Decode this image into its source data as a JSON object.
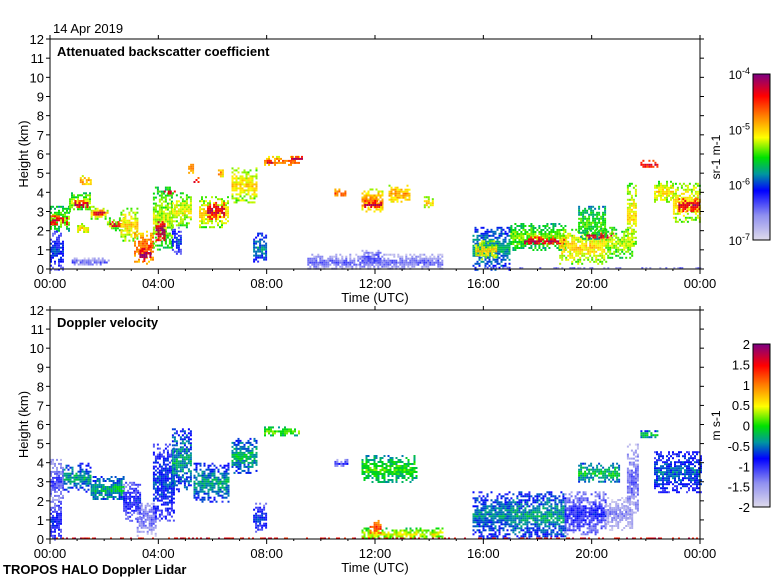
{
  "chart_data": [
    {
      "type": "heatmap",
      "id": "bsc",
      "date": "14 Apr 2019",
      "title": "Attenuated backscatter coefficient",
      "xlabel": "Time (UTC)",
      "ylabel": "Height (km)",
      "xlim": [
        0,
        24
      ],
      "ylim": [
        0,
        12
      ],
      "xticks": [
        "00:00",
        "04:00",
        "08:00",
        "12:00",
        "16:00",
        "20:00",
        "00:00"
      ],
      "yticks": [
        "0",
        "1",
        "2",
        "3",
        "4",
        "5",
        "6",
        "7",
        "8",
        "9",
        "10",
        "11",
        "12"
      ],
      "colorbar": {
        "label": "sr-1 m-1",
        "scale": "log10",
        "range": [
          -7,
          -4
        ],
        "ticks": [
          {
            "base": "10",
            "exp": "-4"
          },
          {
            "base": "10",
            "exp": "-5"
          },
          {
            "base": "10",
            "exp": "-6"
          },
          {
            "base": "10",
            "exp": "-7"
          }
        ]
      },
      "features_note": "[t_start_h, t_end_h, base_km, top_km, log10 value]",
      "features": [
        [
          0,
          0.7,
          2.0,
          3.3,
          -5.3
        ],
        [
          0,
          0.6,
          2.3,
          2.8,
          -4.2
        ],
        [
          0,
          0.5,
          0,
          2,
          -6.0
        ],
        [
          0.7,
          1.5,
          3.0,
          4.0,
          -5.2
        ],
        [
          0.9,
          1.4,
          3.2,
          3.6,
          -4.2
        ],
        [
          1.1,
          1.5,
          4.4,
          4.9,
          -4.8
        ],
        [
          1.5,
          2.1,
          2.6,
          3.3,
          -5.0
        ],
        [
          1.6,
          2.0,
          2.8,
          3.1,
          -4.2
        ],
        [
          1.0,
          1.4,
          1.9,
          2.4,
          -5
        ],
        [
          2.1,
          2.7,
          2.0,
          2.7,
          -5.2
        ],
        [
          2.2,
          2.6,
          2.2,
          2.5,
          -4.2
        ],
        [
          2.6,
          3.2,
          1.5,
          3.2,
          -5.0
        ],
        [
          3.1,
          3.8,
          0.3,
          2.0,
          -4.6
        ],
        [
          3.3,
          3.7,
          0.4,
          1.2,
          -4.1
        ],
        [
          3.8,
          4.5,
          1.0,
          4.3,
          -5.2
        ],
        [
          3.9,
          4.2,
          1.5,
          2.6,
          -4.1
        ],
        [
          4.2,
          4.6,
          3.9,
          4.2,
          -4.2
        ],
        [
          4.5,
          5.2,
          2.2,
          4.0,
          -5.1
        ],
        [
          4.5,
          4.8,
          0.8,
          2.2,
          -6
        ],
        [
          5.1,
          5.3,
          5.0,
          5.7,
          -4.7
        ],
        [
          5.3,
          5.5,
          4.5,
          4.8,
          -4.2
        ],
        [
          5.5,
          6.6,
          2.2,
          3.8,
          -5.0
        ],
        [
          5.8,
          6.4,
          2.6,
          3.5,
          -4.2
        ],
        [
          6.2,
          6.4,
          4.8,
          5.3,
          -4.8
        ],
        [
          6.7,
          7.6,
          3.5,
          5.3,
          -5
        ],
        [
          7.5,
          8.0,
          0.4,
          1.9,
          -5.8
        ],
        [
          7.9,
          9.2,
          5.4,
          5.9,
          -4.7
        ],
        [
          8.0,
          8.2,
          5.5,
          5.7,
          -4.2
        ],
        [
          8.9,
          9.3,
          5.7,
          5.9,
          -4.2
        ],
        [
          0.8,
          2.2,
          0.2,
          0.6,
          -6.4
        ],
        [
          9.5,
          14.5,
          0,
          0.8,
          -6.4
        ],
        [
          11.5,
          12.2,
          0.2,
          1.0,
          -6.3
        ],
        [
          10.5,
          11.0,
          3.8,
          4.2,
          -4.6
        ],
        [
          11.5,
          12.3,
          3.0,
          4.2,
          -4.8
        ],
        [
          11.6,
          12.2,
          3.2,
          3.6,
          -4.2
        ],
        [
          12.5,
          13.3,
          3.5,
          4.4,
          -4.8
        ],
        [
          13.8,
          14.1,
          3.2,
          3.8,
          -5
        ],
        [
          15.6,
          17.0,
          0,
          2.2,
          -5.7
        ],
        [
          15.7,
          16.5,
          0.5,
          1.5,
          -5.0
        ],
        [
          17.0,
          19.0,
          1.0,
          2.4,
          -5.3
        ],
        [
          17.5,
          19.0,
          1.3,
          1.7,
          -4.2
        ],
        [
          18.8,
          20.5,
          0.3,
          2.1,
          -5.0
        ],
        [
          19.5,
          20.5,
          1.6,
          3.3,
          -5.4
        ],
        [
          19.8,
          20.8,
          1.6,
          1.9,
          -4.2
        ],
        [
          20.5,
          21.5,
          0.6,
          2.2,
          -5.2
        ],
        [
          21.3,
          21.6,
          1.2,
          4.5,
          -5
        ],
        [
          21.8,
          22.4,
          5.3,
          5.7,
          -4.3
        ],
        [
          22.3,
          23.0,
          3.5,
          4.6,
          -5.0
        ],
        [
          23.0,
          24,
          2.5,
          4.5,
          -5.0
        ],
        [
          23.2,
          24,
          3.0,
          3.7,
          -4.2
        ],
        [
          16,
          24,
          0,
          0.1,
          -6.2
        ]
      ]
    },
    {
      "type": "heatmap",
      "id": "vel",
      "title": "Doppler velocity",
      "xlabel": "Time (UTC)",
      "ylabel": "Height (km)",
      "xlim": [
        0,
        24
      ],
      "ylim": [
        0,
        12
      ],
      "xticks": [
        "00:00",
        "04:00",
        "08:00",
        "12:00",
        "16:00",
        "20:00",
        "00:00"
      ],
      "yticks": [
        "0",
        "1",
        "2",
        "3",
        "4",
        "5",
        "6",
        "7",
        "8",
        "9",
        "10",
        "11",
        "12"
      ],
      "colorbar": {
        "label": "m s-1",
        "scale": "linear",
        "range": [
          -2,
          2
        ],
        "ticks": [
          "2",
          "1.5",
          "1",
          "0.5",
          "0",
          "-0.5",
          "-1",
          "-1.5",
          "-2"
        ]
      },
      "features_note": "[t_start_h, t_end_h, base_km, top_km, velocity m/s]",
      "features": [
        [
          0,
          0.5,
          2,
          4.2,
          -1.1
        ],
        [
          0,
          0.4,
          0,
          2,
          -0.8
        ],
        [
          0.5,
          1.5,
          2.5,
          4,
          -0.3
        ],
        [
          1.5,
          2.7,
          2,
          3.3,
          -0.2
        ],
        [
          2.7,
          3.3,
          1.0,
          3,
          -0.8
        ],
        [
          3.2,
          3.9,
          0.2,
          2.0,
          -1.2
        ],
        [
          3.8,
          4.6,
          1,
          5,
          -0.6
        ],
        [
          4.5,
          5.2,
          2.5,
          5.8,
          -0.3
        ],
        [
          5.3,
          6.6,
          2,
          4,
          -0.3
        ],
        [
          6.7,
          7.6,
          3.5,
          5.3,
          -0.2
        ],
        [
          7.5,
          8,
          0.3,
          1.9,
          -0.7
        ],
        [
          7.9,
          9.2,
          5.4,
          5.9,
          0.2
        ],
        [
          10.5,
          11,
          3.8,
          4.2,
          -1
        ],
        [
          11.5,
          13.5,
          3,
          4.4,
          0.1
        ],
        [
          11.5,
          14.5,
          0,
          0.6,
          0.5
        ],
        [
          11.8,
          12.2,
          0.3,
          1.0,
          1.3
        ],
        [
          15.6,
          17,
          0,
          2.5,
          -0.4
        ],
        [
          17,
          19,
          0,
          2.5,
          -0.3
        ],
        [
          19,
          20.5,
          0.2,
          2.5,
          -0.9
        ],
        [
          19.5,
          21,
          3,
          4,
          -0.1
        ],
        [
          20.5,
          21.5,
          0.5,
          2.2,
          -1.4
        ],
        [
          21.3,
          21.7,
          1.0,
          5,
          -1.2
        ],
        [
          21.8,
          22.4,
          5.3,
          5.7,
          -0.1
        ],
        [
          22.3,
          24,
          2.5,
          4.6,
          -0.5
        ],
        [
          0,
          24,
          0,
          0.08,
          2
        ]
      ]
    }
  ],
  "footer": "TROPOS HALO Doppler Lidar"
}
